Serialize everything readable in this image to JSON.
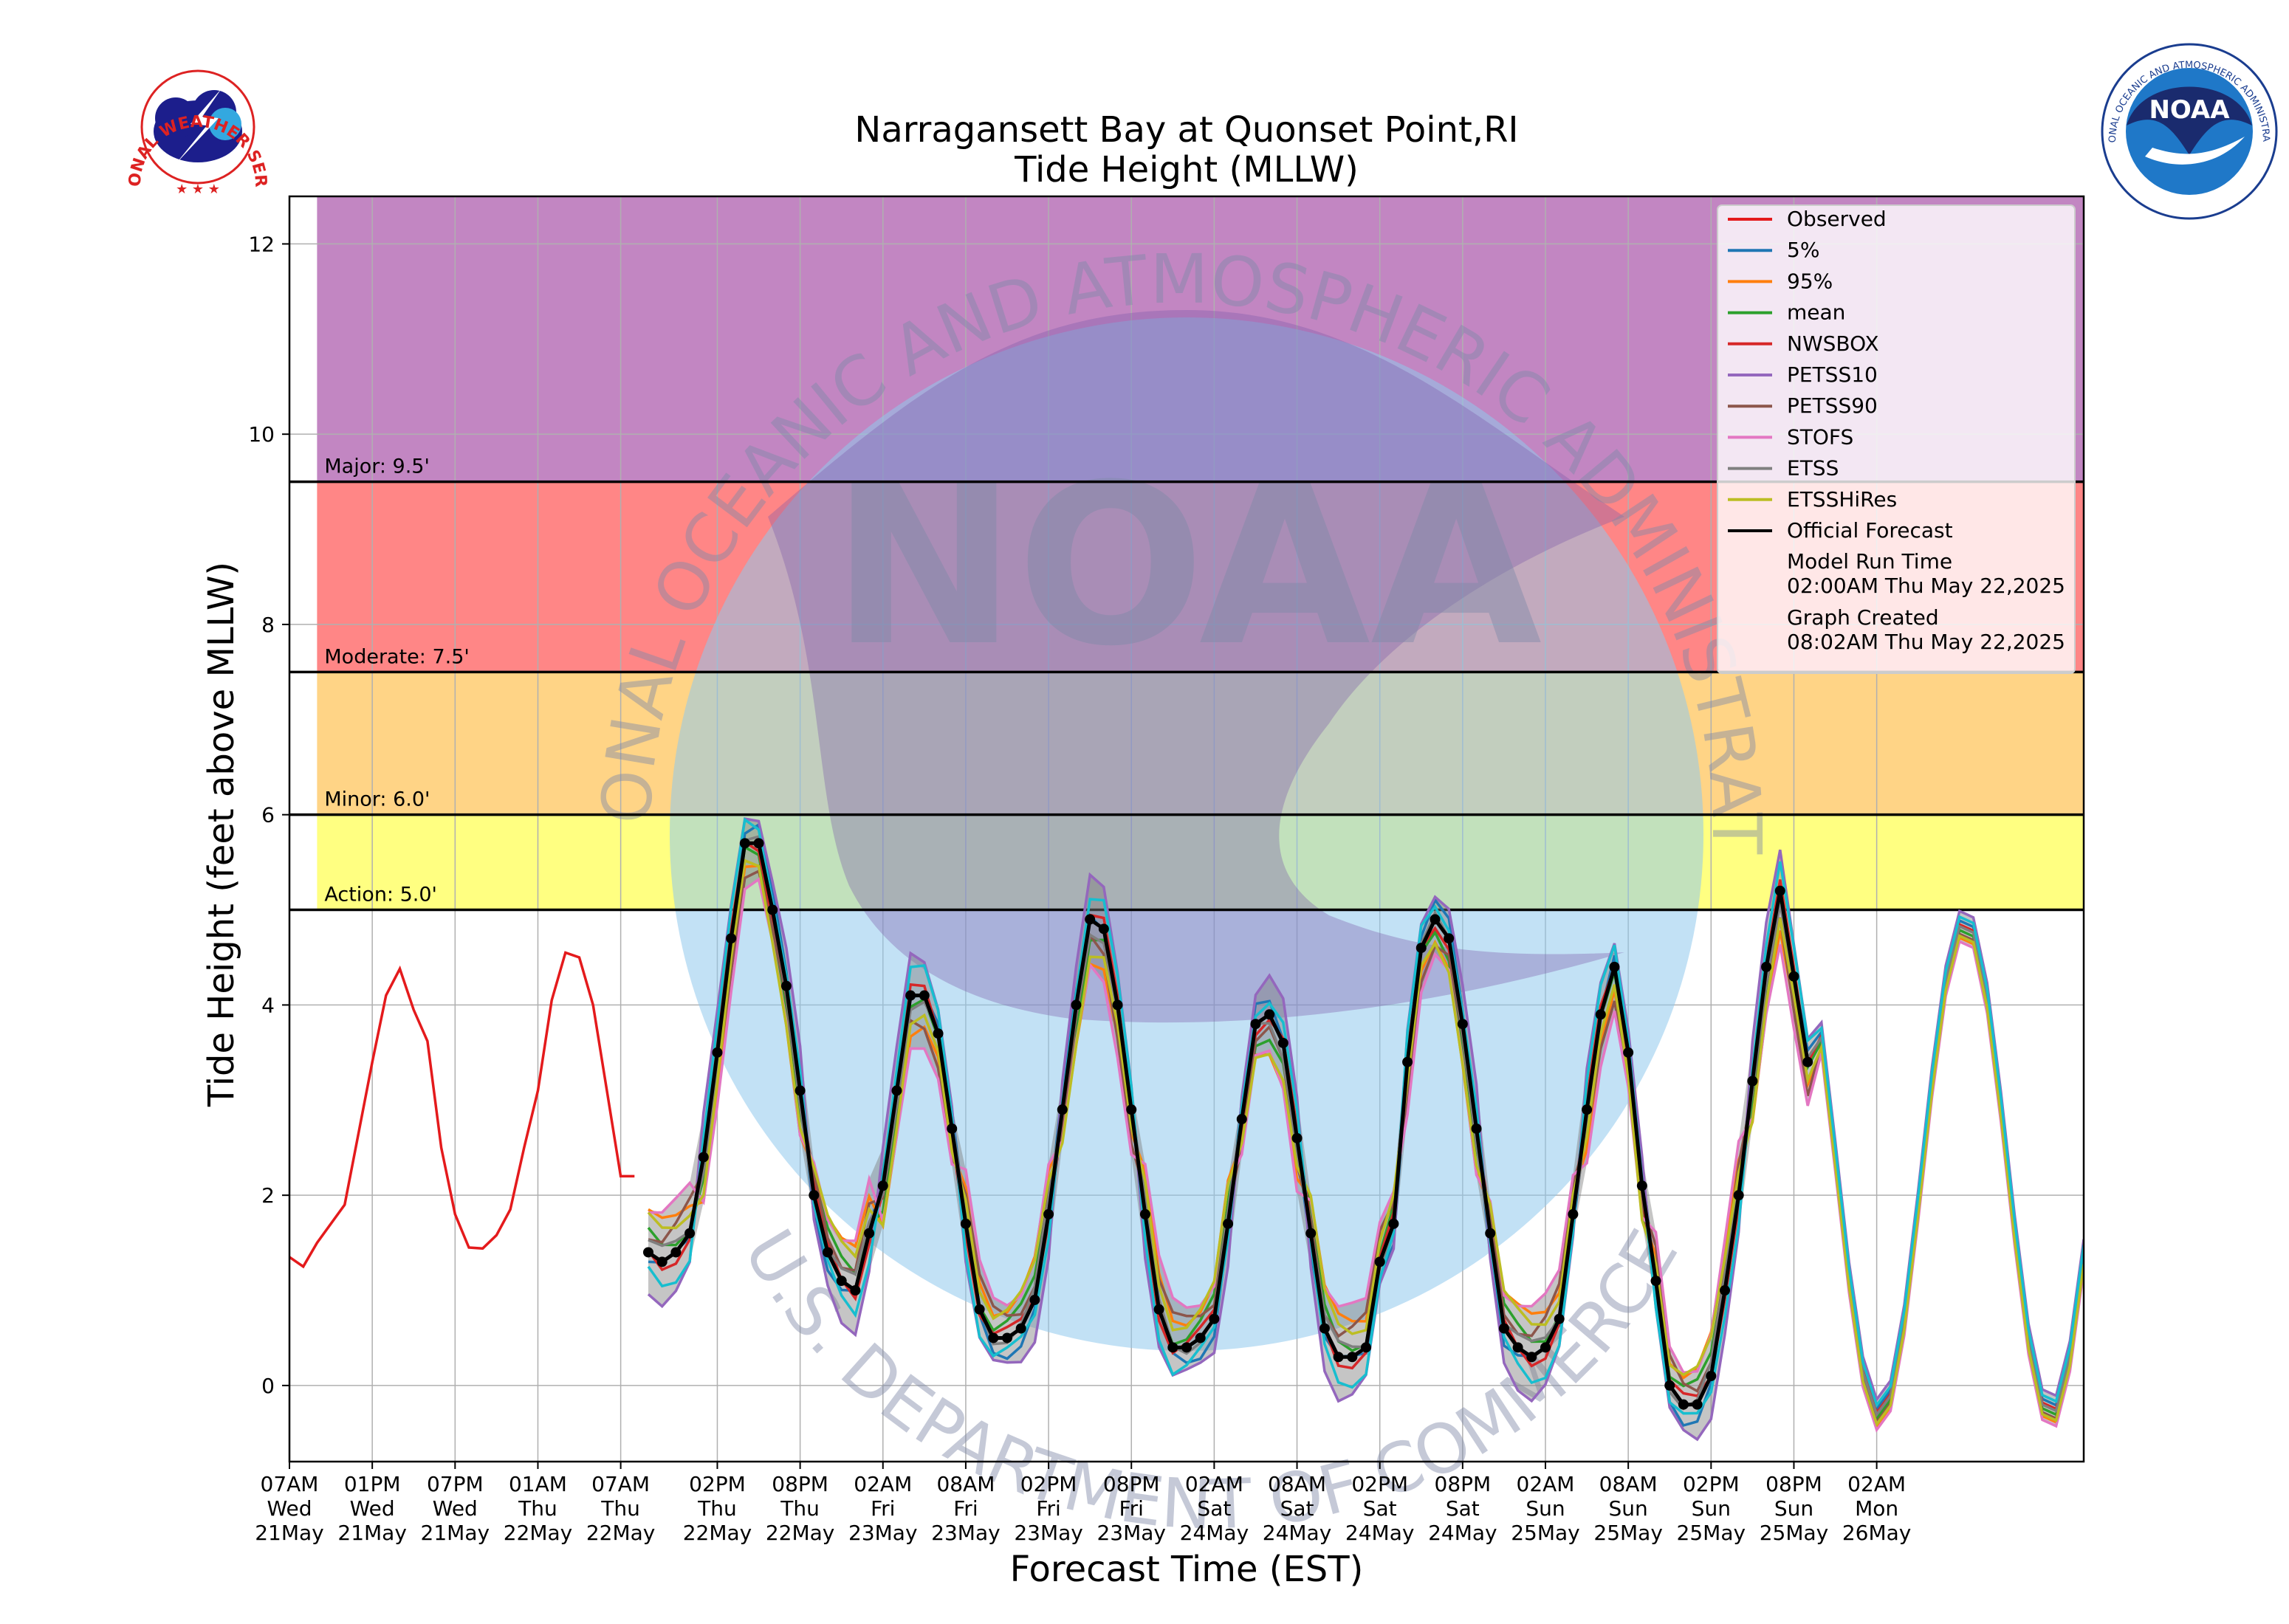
{
  "chart_data": {
    "type": "line",
    "title": "Narragansett Bay at Quonset Point,RI",
    "subtitle": "Tide Height (MLLW)",
    "xlabel": "Forecast Time (EST)",
    "ylabel": "Tide Height (feet above MLLW)",
    "ylim": [
      -0.8,
      12.5
    ],
    "yticks": [
      0,
      2,
      4,
      6,
      8,
      10,
      12
    ],
    "x_unit": "hours since 07AM Wed 21May (EST)",
    "xlim": [
      0,
      130
    ],
    "xticks": [
      {
        "h": 0,
        "l1": "07AM",
        "l2": "Wed",
        "l3": "21May"
      },
      {
        "h": 6,
        "l1": "01PM",
        "l2": "Wed",
        "l3": "21May"
      },
      {
        "h": 12,
        "l1": "07PM",
        "l2": "Wed",
        "l3": "21May"
      },
      {
        "h": 18,
        "l1": "01AM",
        "l2": "Thu",
        "l3": "22May"
      },
      {
        "h": 24,
        "l1": "07AM",
        "l2": "Thu",
        "l3": "22May"
      },
      {
        "h": 31,
        "l1": "02PM",
        "l2": "Thu",
        "l3": "22May"
      },
      {
        "h": 37,
        "l1": "08PM",
        "l2": "Thu",
        "l3": "22May"
      },
      {
        "h": 43,
        "l1": "02AM",
        "l2": "Fri",
        "l3": "23May"
      },
      {
        "h": 49,
        "l1": "08AM",
        "l2": "Fri",
        "l3": "23May"
      },
      {
        "h": 55,
        "l1": "02PM",
        "l2": "Fri",
        "l3": "23May"
      },
      {
        "h": 61,
        "l1": "08PM",
        "l2": "Fri",
        "l3": "23May"
      },
      {
        "h": 67,
        "l1": "02AM",
        "l2": "Sat",
        "l3": "24May"
      },
      {
        "h": 73,
        "l1": "08AM",
        "l2": "Sat",
        "l3": "24May"
      },
      {
        "h": 79,
        "l1": "02PM",
        "l2": "Sat",
        "l3": "24May"
      },
      {
        "h": 85,
        "l1": "08PM",
        "l2": "Sat",
        "l3": "24May"
      },
      {
        "h": 91,
        "l1": "02AM",
        "l2": "Sun",
        "l3": "25May"
      },
      {
        "h": 97,
        "l1": "08AM",
        "l2": "Sun",
        "l3": "25May"
      },
      {
        "h": 103,
        "l1": "02PM",
        "l2": "Sun",
        "l3": "25May"
      },
      {
        "h": 109,
        "l1": "08PM",
        "l2": "Sun",
        "l3": "25May"
      },
      {
        "h": 115,
        "l1": "02AM",
        "l2": "Mon",
        "l3": "26May"
      }
    ],
    "grid": true,
    "thresholds": [
      {
        "label": "Action: 5.0'",
        "value": 5.0,
        "band_top": 6.0,
        "color": "#ffff7a"
      },
      {
        "label": "Minor: 6.0'",
        "value": 6.0,
        "band_top": 7.5,
        "color": "#ffd27f"
      },
      {
        "label": "Moderate: 7.5'",
        "value": 7.5,
        "band_top": 9.5,
        "color": "#ff7f7f"
      },
      {
        "label": "Major: 9.5'",
        "value": 9.5,
        "band_top": 12.5,
        "color": "#bf7fbf"
      }
    ],
    "legend": {
      "position": "top-right",
      "entries": [
        {
          "label": "Observed",
          "color": "#e41a1c"
        },
        {
          "label": "5%",
          "color": "#1f77b4"
        },
        {
          "label": "95%",
          "color": "#ff7f0e"
        },
        {
          "label": "mean",
          "color": "#2ca02c"
        },
        {
          "label": "NWSBOX",
          "color": "#d62728"
        },
        {
          "label": "PETSS10",
          "color": "#9467bd"
        },
        {
          "label": "PETSS90",
          "color": "#8c564b"
        },
        {
          "label": "STOFS",
          "color": "#e377c2"
        },
        {
          "label": "ETSS",
          "color": "#7f7f7f"
        },
        {
          "label": "ETSSHiRes",
          "color": "#bcbd22"
        },
        {
          "label": "Official Forecast",
          "color": "#000000"
        }
      ],
      "info": [
        {
          "label": "Model Run Time",
          "value": "02:00AM Thu May 22,2025"
        },
        {
          "label": "Graph Created",
          "value": "08:02AM Thu May 22,2025"
        }
      ]
    },
    "observed": {
      "name": "Observed",
      "color": "#e41a1c",
      "x": [
        0,
        1,
        2,
        4,
        5,
        6,
        7,
        8,
        9,
        10,
        11,
        12,
        13,
        14,
        15,
        16,
        17,
        18,
        19,
        20,
        21,
        22,
        23,
        24,
        25
      ],
      "y": [
        1.35,
        1.25,
        1.5,
        1.9,
        2.65,
        3.4,
        4.1,
        4.38,
        3.95,
        3.62,
        2.5,
        1.8,
        1.45,
        1.44,
        1.58,
        1.85,
        2.5,
        3.1,
        4.05,
        4.55,
        4.5,
        4.0,
        3.1,
        2.2,
        2.2
      ]
    },
    "official_forecast": {
      "name": "Official Forecast",
      "color": "#000000",
      "x": [
        26,
        27,
        28,
        29,
        30,
        31,
        32,
        33,
        34,
        35,
        36,
        37,
        38,
        39,
        40,
        41,
        42,
        43,
        44,
        45,
        46,
        47,
        48,
        49,
        50,
        51,
        52,
        53,
        54,
        55,
        56,
        57,
        58,
        59,
        60,
        61,
        62,
        63,
        64,
        65,
        66,
        67,
        68,
        69,
        70,
        71,
        72,
        73,
        74,
        75,
        76,
        77,
        78,
        79,
        80,
        81,
        82,
        83,
        84,
        85,
        86,
        87,
        88,
        89,
        90,
        91,
        92,
        93,
        94,
        95,
        96,
        97,
        98,
        99,
        100,
        101,
        102,
        103,
        104,
        105,
        106,
        107,
        108,
        109,
        110
      ],
      "y": [
        1.4,
        1.3,
        1.4,
        1.6,
        2.4,
        3.5,
        4.7,
        5.7,
        5.7,
        5.0,
        4.2,
        3.1,
        2.0,
        1.4,
        1.1,
        1.0,
        1.6,
        2.1,
        3.1,
        4.1,
        4.1,
        3.7,
        2.7,
        1.7,
        0.8,
        0.5,
        0.5,
        0.6,
        0.9,
        1.8,
        2.9,
        4.0,
        4.9,
        4.8,
        4.0,
        2.9,
        1.8,
        0.8,
        0.4,
        0.4,
        0.5,
        0.7,
        1.7,
        2.8,
        3.8,
        3.9,
        3.6,
        2.6,
        1.6,
        0.6,
        0.3,
        0.3,
        0.4,
        1.3,
        1.7,
        3.4,
        4.6,
        4.9,
        4.7,
        3.8,
        2.7,
        1.6,
        0.6,
        0.4,
        0.3,
        0.4,
        0.7,
        1.8,
        2.9,
        3.9,
        4.4,
        3.5,
        2.1,
        1.1,
        0.0,
        -0.2,
        -0.2,
        0.1,
        1.0,
        2.0,
        3.2,
        4.4,
        5.2,
        4.3,
        3.4
      ]
    },
    "series": [
      {
        "name": "5%",
        "color": "#1f77b4",
        "offset": 0.1
      },
      {
        "name": "95%",
        "color": "#ff7f0e",
        "offset": -0.35
      },
      {
        "name": "mean",
        "color": "#2ca02c",
        "offset": -0.15
      },
      {
        "name": "NWSBOX",
        "color": "#d62728",
        "offset": 0.0
      },
      {
        "name": "PETSS10",
        "color": "#9467bd",
        "offset": 0.35
      },
      {
        "name": "PETSS90",
        "color": "#8c564b",
        "offset": -0.25
      },
      {
        "name": "STOFS",
        "color": "#e377c2",
        "offset": -0.45
      },
      {
        "name": "ETSS",
        "color": "#7f7f7f",
        "offset": -0.05
      },
      {
        "name": "ETSSHiRes",
        "color": "#bcbd22",
        "offset": -0.3
      },
      {
        "name": "cyan",
        "color": "#17becf",
        "offset": 0.2
      }
    ]
  },
  "watermark": {
    "top_text": "NATIONAL OCEANIC AND ATMOSPHERIC ADMINISTRATION",
    "bottom_text": "U.S. DEPARTMENT OF COMMERCE",
    "center_text": "NOAA"
  },
  "logos": {
    "nws_text": "NATIONAL WEATHER SERVICE",
    "noaa_ring_text": "NATIONAL OCEANIC AND ATMOSPHERIC ADMINISTRATION",
    "noaa_ring_bottom": "U.S. DEPARTMENT OF COMMERCE",
    "noaa_center": "NOAA"
  }
}
